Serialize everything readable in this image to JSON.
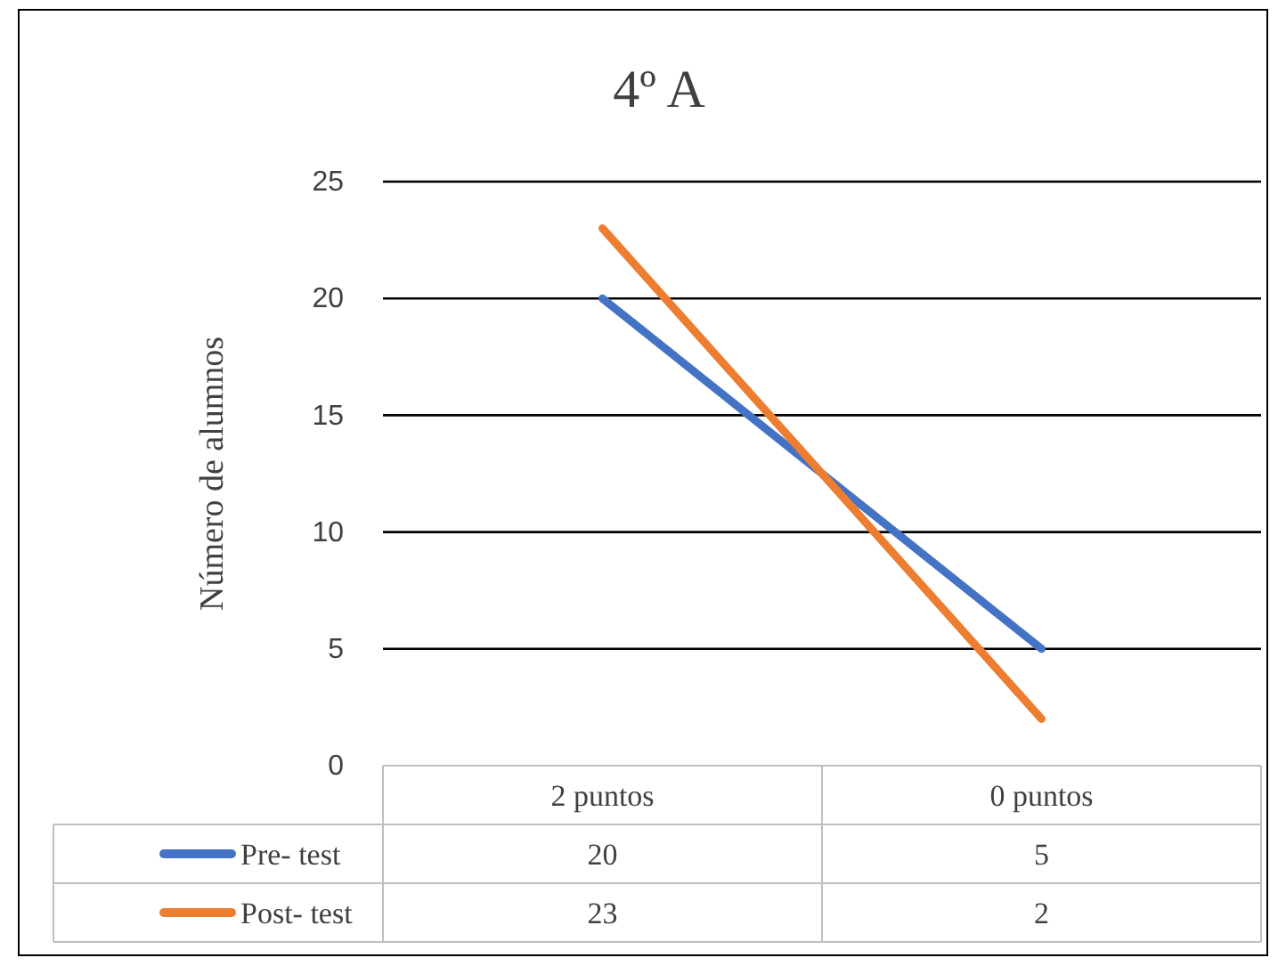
{
  "chart_data": {
    "type": "line",
    "title": "4º A",
    "ylabel": "Número de alumnos",
    "categories": [
      "2 puntos",
      "0 puntos"
    ],
    "series": [
      {
        "name": "Pre- test",
        "color": "#4472c4",
        "values": [
          20,
          5
        ]
      },
      {
        "name": "Post- test",
        "color": "#ed7d31",
        "values": [
          23,
          2
        ]
      }
    ],
    "ylim": [
      0,
      25
    ],
    "yticks": [
      0,
      5,
      10,
      15,
      20,
      25
    ],
    "grid": "y",
    "legend": "bottom",
    "data_labels": true,
    "marker": "none",
    "line_style": "solid"
  }
}
